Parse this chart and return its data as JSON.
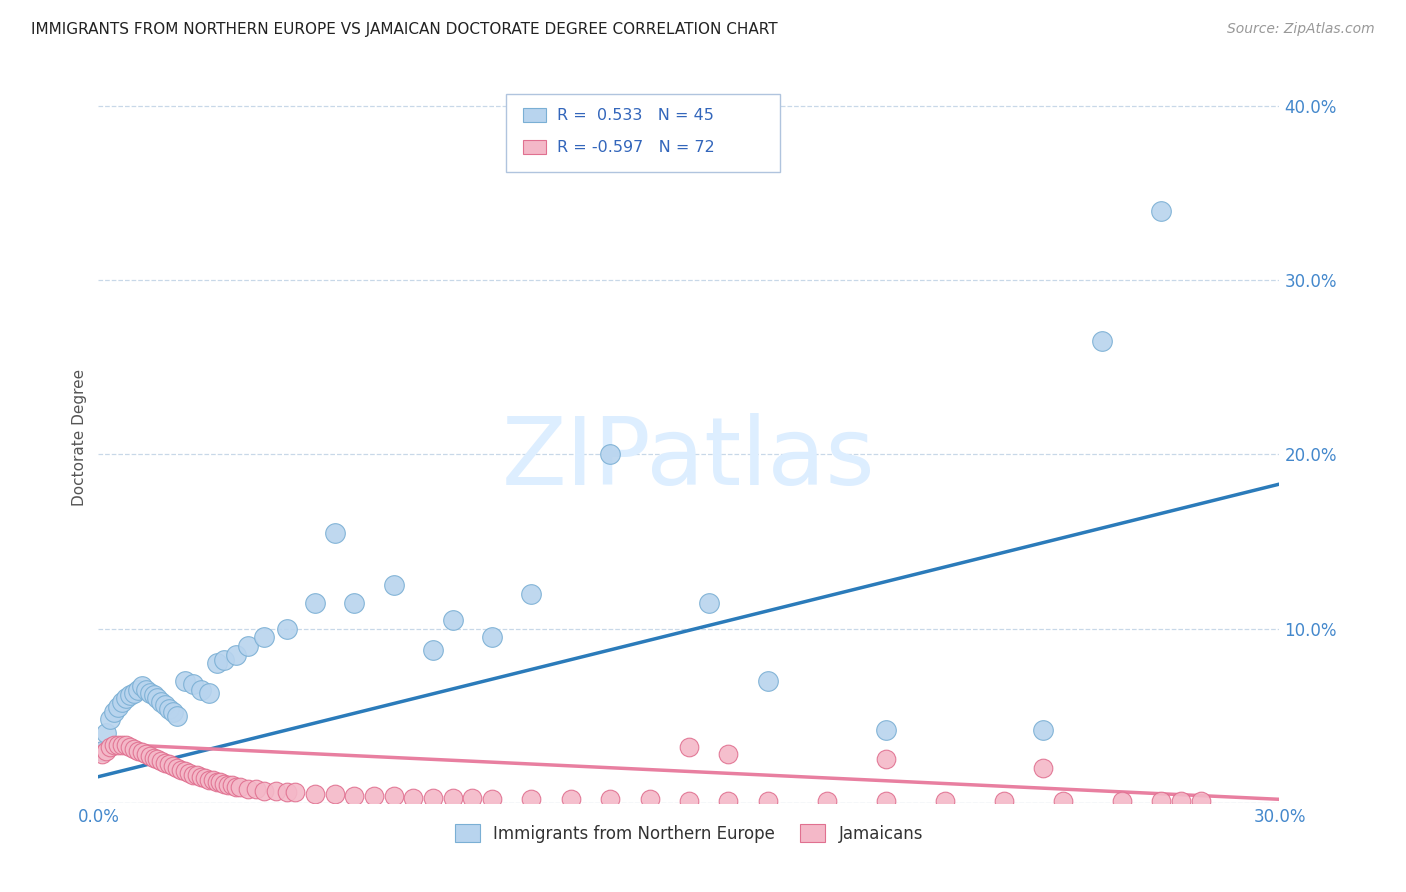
{
  "title": "IMMIGRANTS FROM NORTHERN EUROPE VS JAMAICAN DOCTORATE DEGREE CORRELATION CHART",
  "source": "Source: ZipAtlas.com",
  "ylabel": "Doctorate Degree",
  "xlim": [
    0.0,
    0.3
  ],
  "ylim": [
    0.0,
    0.42
  ],
  "ytick_vals": [
    0.0,
    0.1,
    0.2,
    0.3,
    0.4
  ],
  "ytick_labels": [
    "",
    "10.0%",
    "20.0%",
    "30.0%",
    "40.0%"
  ],
  "blue_line_color": "#2b7bba",
  "pink_line_color": "#e87fa0",
  "blue_scatter_facecolor": "#b8d4ee",
  "blue_scatter_edgecolor": "#7aafd4",
  "pink_scatter_facecolor": "#f4b8c8",
  "pink_scatter_edgecolor": "#e07090",
  "watermark_text": "ZIPatlas",
  "watermark_color": "#ddeeff",
  "legend_label_blue": "Immigrants from Northern Europe",
  "legend_label_pink": "Jamaicans",
  "r_blue": "R =  0.533",
  "n_blue": "N = 45",
  "r_pink": "R = -0.597",
  "n_pink": "N = 72",
  "blue_line_x0": 0.0,
  "blue_line_y0": 0.015,
  "blue_line_x1": 0.3,
  "blue_line_y1": 0.183,
  "pink_line_x0": 0.0,
  "pink_line_y0": 0.034,
  "pink_line_x1": 0.3,
  "pink_line_y1": 0.002,
  "blue_x": [
    0.001,
    0.002,
    0.003,
    0.004,
    0.005,
    0.006,
    0.007,
    0.008,
    0.009,
    0.01,
    0.011,
    0.012,
    0.013,
    0.014,
    0.015,
    0.016,
    0.017,
    0.018,
    0.019,
    0.02,
    0.022,
    0.024,
    0.026,
    0.028,
    0.03,
    0.032,
    0.035,
    0.038,
    0.042,
    0.048,
    0.055,
    0.065,
    0.075,
    0.09,
    0.11,
    0.13,
    0.155,
    0.085,
    0.06,
    0.1,
    0.17,
    0.2,
    0.24,
    0.255,
    0.27
  ],
  "blue_y": [
    0.03,
    0.04,
    0.048,
    0.052,
    0.055,
    0.058,
    0.06,
    0.062,
    0.063,
    0.065,
    0.067,
    0.065,
    0.063,
    0.062,
    0.06,
    0.058,
    0.056,
    0.054,
    0.052,
    0.05,
    0.07,
    0.068,
    0.065,
    0.063,
    0.08,
    0.082,
    0.085,
    0.09,
    0.095,
    0.1,
    0.115,
    0.115,
    0.125,
    0.105,
    0.12,
    0.2,
    0.115,
    0.088,
    0.155,
    0.095,
    0.07,
    0.042,
    0.042,
    0.265,
    0.34
  ],
  "pink_x": [
    0.001,
    0.002,
    0.003,
    0.004,
    0.005,
    0.006,
    0.007,
    0.008,
    0.009,
    0.01,
    0.011,
    0.012,
    0.013,
    0.014,
    0.015,
    0.016,
    0.017,
    0.018,
    0.019,
    0.02,
    0.021,
    0.022,
    0.023,
    0.024,
    0.025,
    0.026,
    0.027,
    0.028,
    0.029,
    0.03,
    0.031,
    0.032,
    0.033,
    0.034,
    0.035,
    0.036,
    0.038,
    0.04,
    0.042,
    0.045,
    0.048,
    0.05,
    0.055,
    0.06,
    0.065,
    0.07,
    0.075,
    0.08,
    0.085,
    0.09,
    0.095,
    0.1,
    0.11,
    0.12,
    0.13,
    0.14,
    0.15,
    0.16,
    0.17,
    0.185,
    0.2,
    0.215,
    0.23,
    0.245,
    0.26,
    0.275,
    0.16,
    0.2,
    0.24,
    0.28,
    0.15,
    0.27
  ],
  "pink_y": [
    0.028,
    0.03,
    0.032,
    0.033,
    0.033,
    0.033,
    0.033,
    0.032,
    0.031,
    0.03,
    0.029,
    0.028,
    0.027,
    0.026,
    0.025,
    0.024,
    0.023,
    0.022,
    0.021,
    0.02,
    0.019,
    0.018,
    0.017,
    0.016,
    0.016,
    0.015,
    0.014,
    0.013,
    0.013,
    0.012,
    0.012,
    0.011,
    0.01,
    0.01,
    0.009,
    0.009,
    0.008,
    0.008,
    0.007,
    0.007,
    0.006,
    0.006,
    0.005,
    0.005,
    0.004,
    0.004,
    0.004,
    0.003,
    0.003,
    0.003,
    0.003,
    0.002,
    0.002,
    0.002,
    0.002,
    0.002,
    0.001,
    0.001,
    0.001,
    0.001,
    0.001,
    0.001,
    0.001,
    0.001,
    0.001,
    0.001,
    0.028,
    0.025,
    0.02,
    0.001,
    0.032,
    0.001
  ]
}
